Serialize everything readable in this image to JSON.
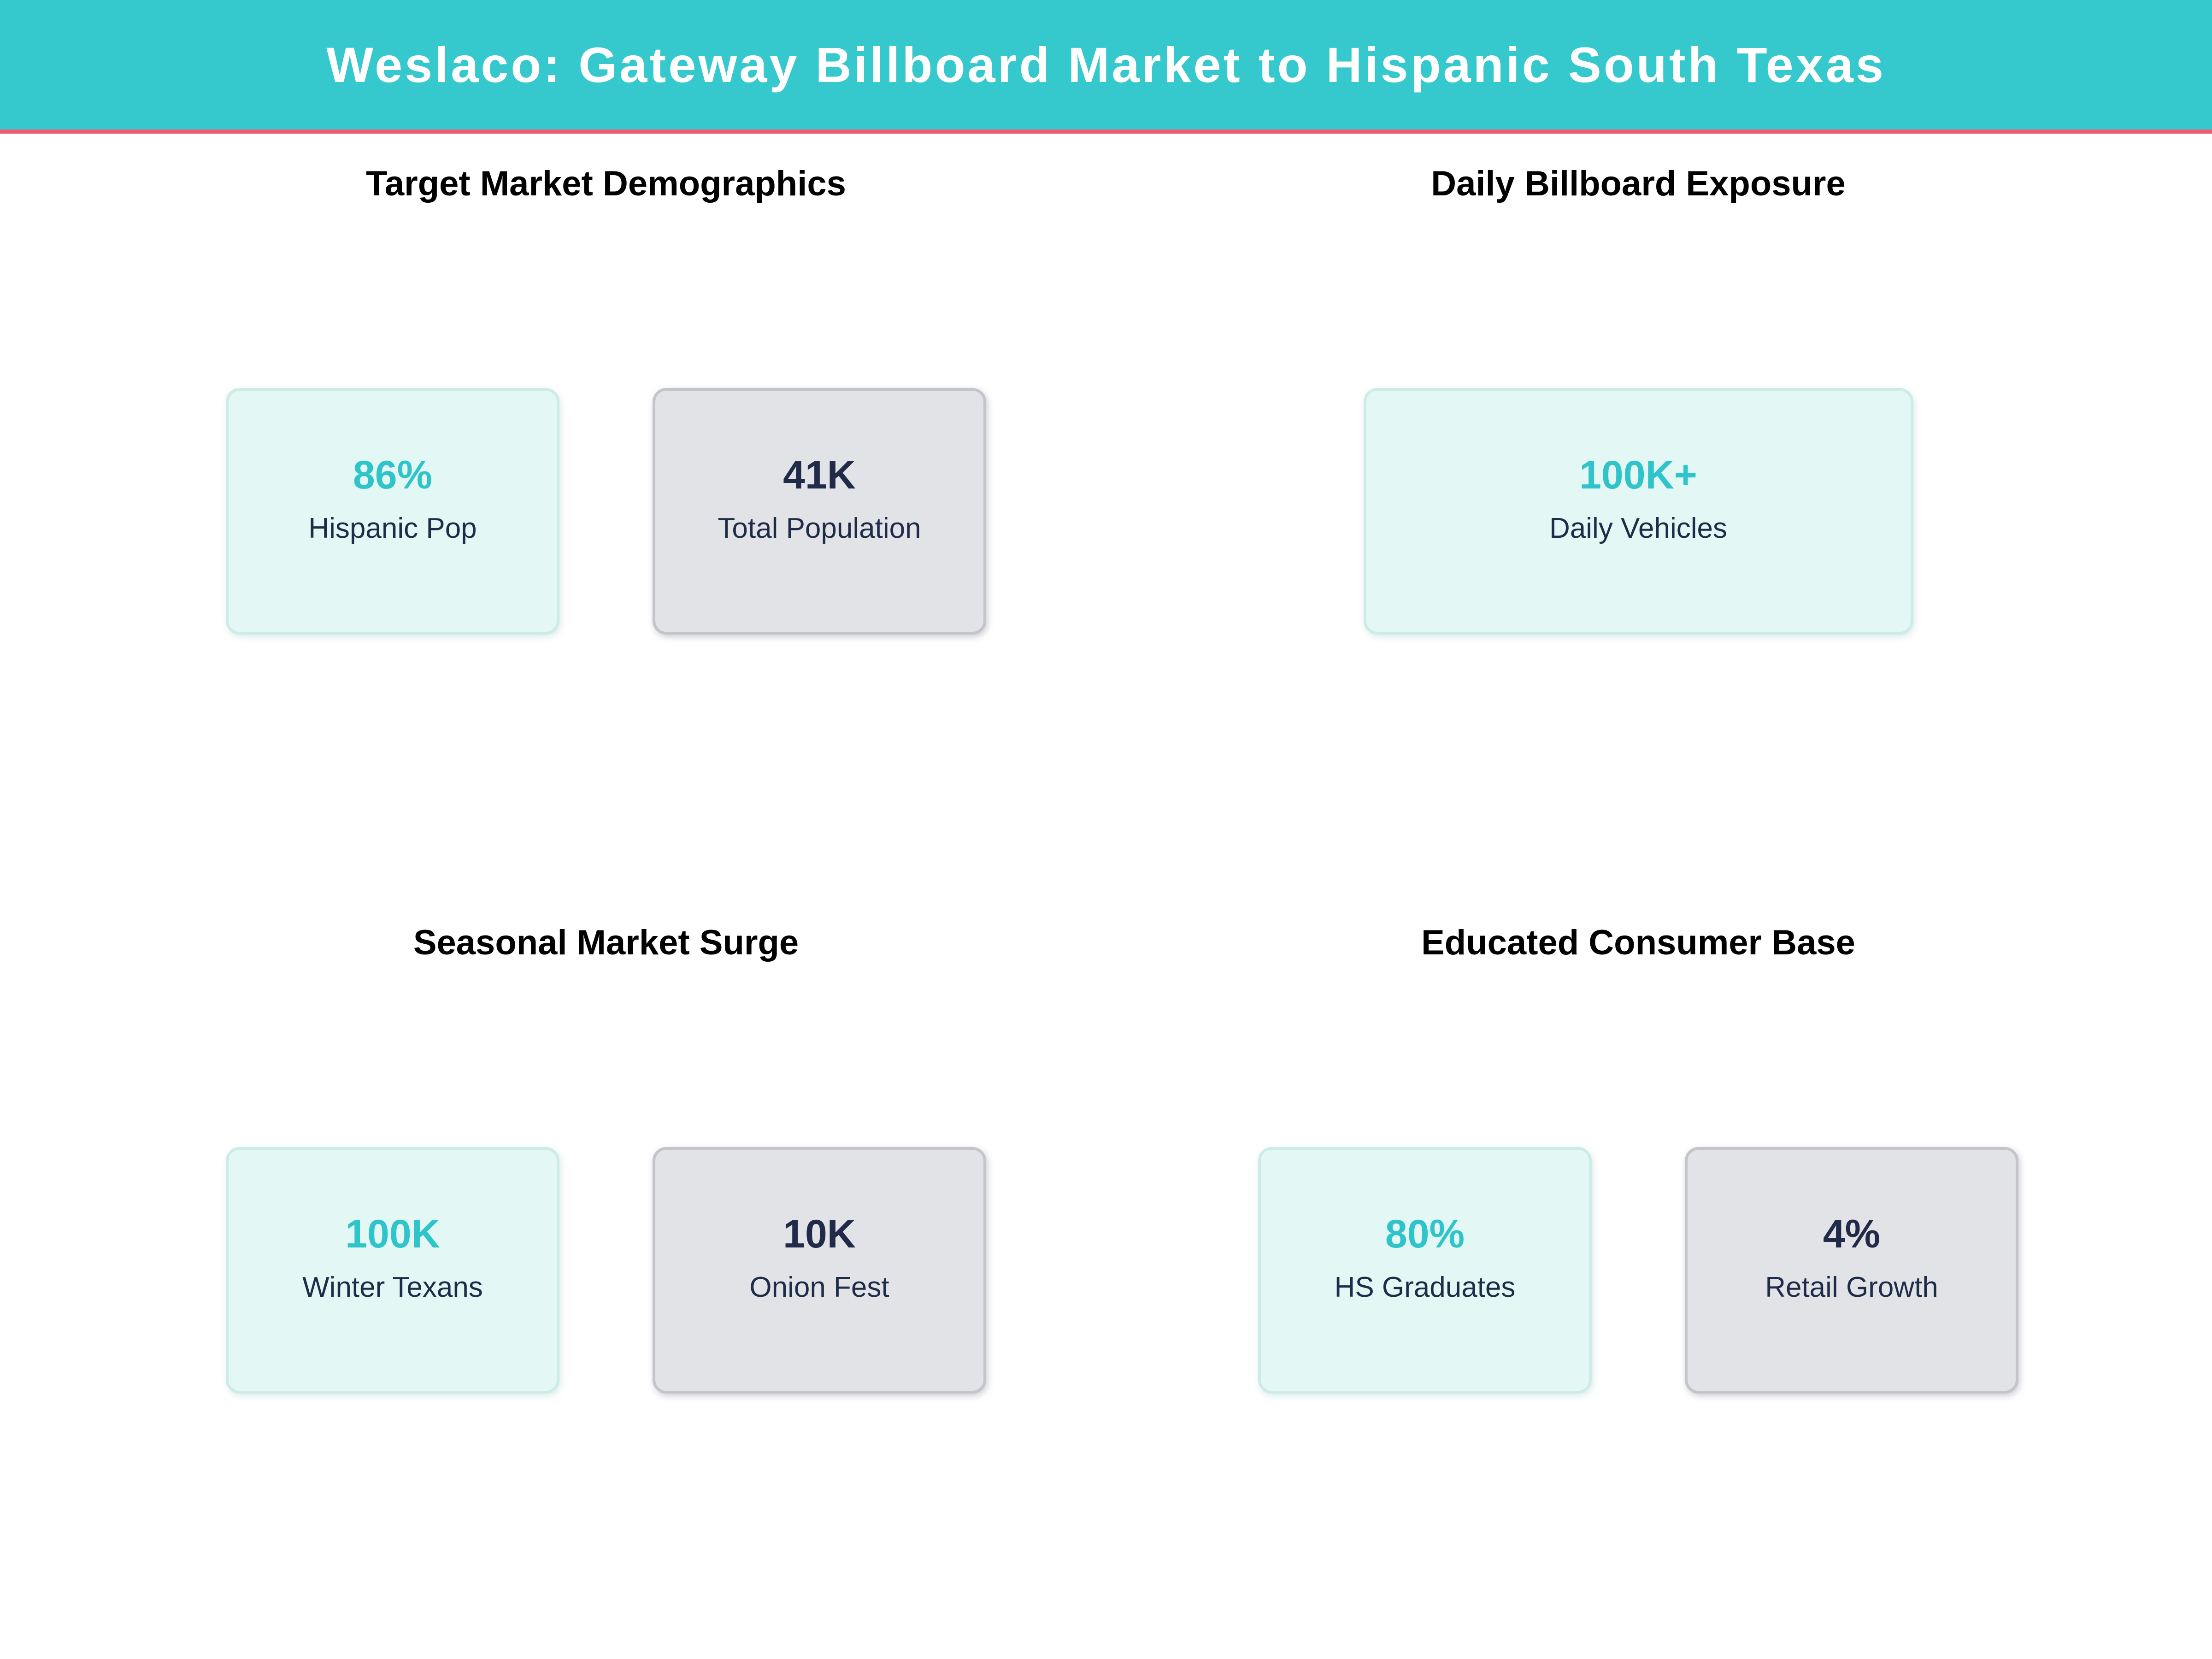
{
  "page": {
    "title": "Weslaco: Gateway Billboard Market to Hispanic South Texas"
  },
  "theme": {
    "page_bg": "#ffffff",
    "header_bg": "#35c8cc",
    "header_text": "#ffffff",
    "accent_line": "#ee5b72",
    "section_title_color": "#000000",
    "teal_value": "#2fc4c9",
    "navy_value": "#212a48",
    "navy_label": "#1f2c49",
    "mint_card_bg": "#e3f7f4",
    "mint_card_border": "#cdece8",
    "gray_card_bg": "#e2e3e7",
    "gray_card_border": "#c4c5cb"
  },
  "sections": [
    {
      "title": "Target Market Demographics",
      "cards": [
        {
          "value": "86%",
          "label": "Hispanic Pop",
          "style": "mint"
        },
        {
          "value": "41K",
          "label": "Total Population",
          "style": "gray"
        }
      ]
    },
    {
      "title": "Daily Billboard Exposure",
      "cards": [
        {
          "value": "100K+",
          "label": "Daily Vehicles",
          "style": "mint",
          "wide": true
        }
      ]
    },
    {
      "title": "Seasonal Market Surge",
      "cards": [
        {
          "value": "100K",
          "label": "Winter Texans",
          "style": "mint"
        },
        {
          "value": "10K",
          "label": "Onion Fest",
          "style": "gray"
        }
      ]
    },
    {
      "title": "Educated Consumer Base",
      "cards": [
        {
          "value": "80%",
          "label": "HS Graduates",
          "style": "mint"
        },
        {
          "value": "4%",
          "label": "Retail Growth",
          "style": "gray"
        }
      ]
    }
  ]
}
